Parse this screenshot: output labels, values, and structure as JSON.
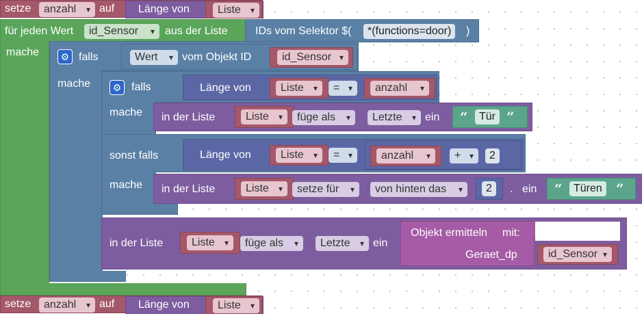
{
  "setze1": {
    "setze": "setze",
    "var": "anzahl",
    "auf": "auf",
    "laenge_von": "Länge von",
    "list_var": "Liste"
  },
  "foreach": {
    "label": "für jeden Wert",
    "var": "id_Sensor",
    "aus": "aus der Liste",
    "selector_label": "IDs vom Selektor $(",
    "selector_value": "*(functions=door)",
    "selector_close": ")",
    "mache": "mache"
  },
  "if1": {
    "falls": "falls",
    "mache": "mache",
    "wert": "Wert",
    "vom_objekt": "vom Objekt ID",
    "id_var": "id_Sensor"
  },
  "if2": {
    "falls": "falls",
    "laenge_von": "Länge von",
    "list_var": "Liste",
    "eq": "=",
    "anzahl": "anzahl",
    "mache1": "mache",
    "insert1": {
      "in_der_liste": "in der Liste",
      "list_var": "Liste",
      "mode": "füge als",
      "where": "Letzte",
      "ein": "ein",
      "text": "Tür"
    },
    "sonst_falls": "sonst falls",
    "laenge_von2": "Länge von",
    "list_var2": "Liste",
    "eq2": "=",
    "anzahl2": "anzahl",
    "plus": "+",
    "num": "2",
    "mache2": "mache",
    "set1": {
      "in_der_liste": "in der Liste",
      "list_var": "Liste",
      "mode": "setze für",
      "where": "von hinten das",
      "num": "2",
      "dot": ".",
      "ein": "ein",
      "text": "Türen"
    }
  },
  "insert2": {
    "in_der_liste": "in der Liste",
    "list_var": "Liste",
    "mode": "füge als",
    "where": "Letzte",
    "ein": "ein",
    "obj_label": "Objekt ermitteln",
    "mit": "mit:",
    "param": "Geraet_dp",
    "param_var": "id_Sensor"
  },
  "setze2": {
    "setze": "setze",
    "var": "anzahl",
    "auf": "auf",
    "laenge_von": "Länge von",
    "list_var": "Liste"
  }
}
